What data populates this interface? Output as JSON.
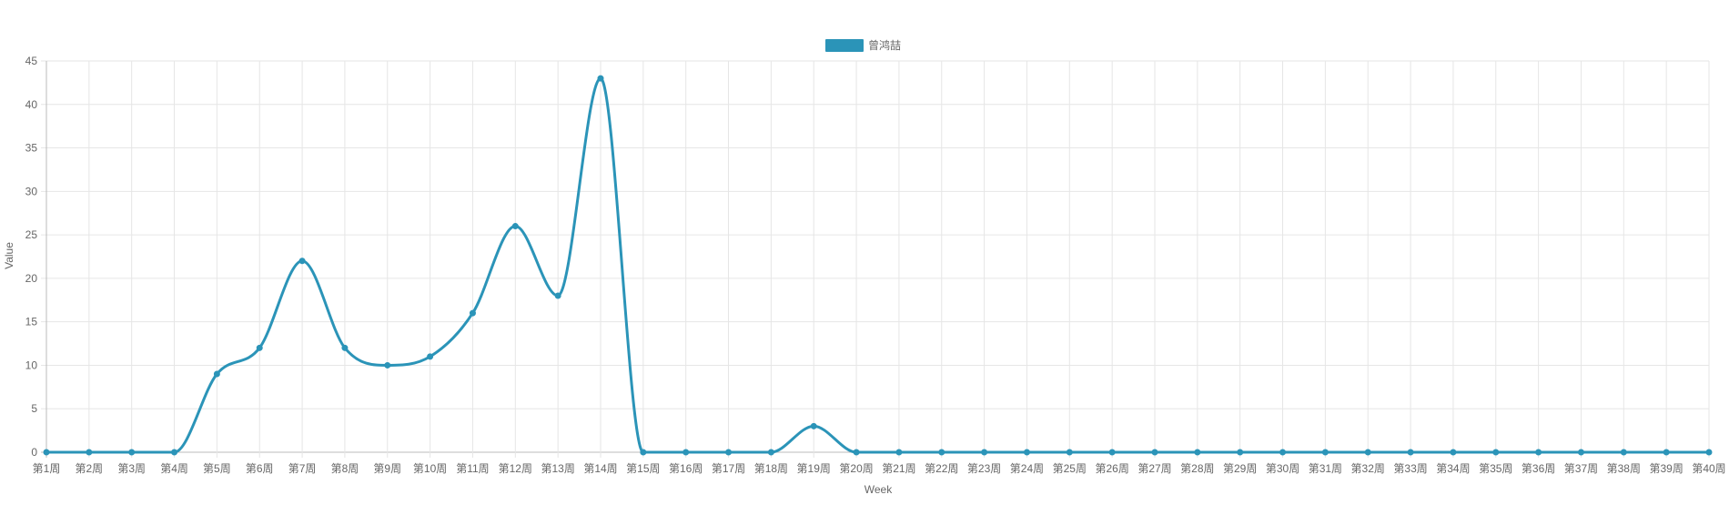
{
  "chart_data": {
    "type": "line",
    "legend": {
      "position": "top",
      "label": "曾鸿喆"
    },
    "xlabel": "Week",
    "ylabel": "Value",
    "ylim": [
      0,
      45
    ],
    "y_ticks": [
      0,
      5,
      10,
      15,
      20,
      25,
      30,
      35,
      40,
      45
    ],
    "grid": true,
    "categories": [
      "第1周",
      "第2周",
      "第3周",
      "第4周",
      "第5周",
      "第6周",
      "第7周",
      "第8周",
      "第9周",
      "第10周",
      "第11周",
      "第12周",
      "第13周",
      "第14周",
      "第15周",
      "第16周",
      "第17周",
      "第18周",
      "第19周",
      "第20周",
      "第21周",
      "第22周",
      "第23周",
      "第24周",
      "第25周",
      "第26周",
      "第27周",
      "第28周",
      "第29周",
      "第30周",
      "第31周",
      "第32周",
      "第33周",
      "第34周",
      "第35周",
      "第36周",
      "第37周",
      "第38周",
      "第39周",
      "第40周"
    ],
    "series": [
      {
        "name": "曾鸿喆",
        "color": "#2b94b8",
        "values": [
          0,
          0,
          0,
          0,
          9,
          12,
          22,
          12,
          10,
          11,
          16,
          26,
          18,
          43,
          0,
          0,
          0,
          0,
          3,
          0,
          0,
          0,
          0,
          0,
          0,
          0,
          0,
          0,
          0,
          0,
          0,
          0,
          0,
          0,
          0,
          0,
          0,
          0,
          0,
          0
        ]
      }
    ]
  }
}
